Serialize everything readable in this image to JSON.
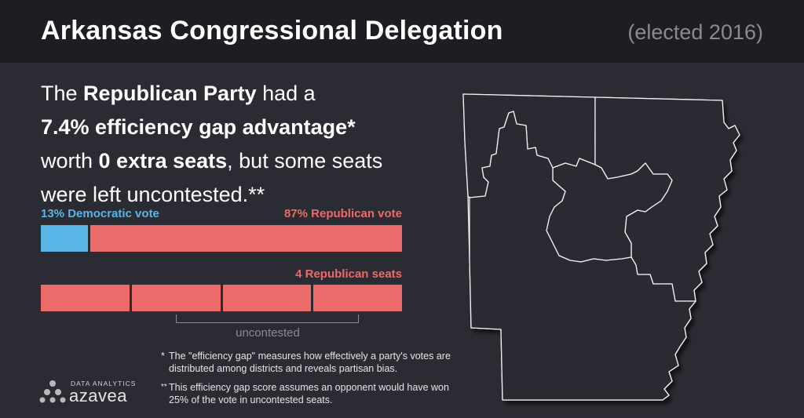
{
  "header": {
    "title": "Arkansas Congressional Delegation",
    "subtitle": "(elected 2016)"
  },
  "headline": {
    "line1_pre": "The ",
    "party": "Republican Party",
    "line1_post": " had a",
    "gap": "7.4% efficiency gap advantage*",
    "line3_pre": "worth ",
    "seats": "0 extra seats",
    "line3_post": ", but some seats",
    "line4": "were left uncontested.**"
  },
  "vote_bar": {
    "dem_label": "13% Democratic vote",
    "rep_label": "87% Republican vote",
    "dem_share": 13,
    "rep_share": 87,
    "dem_color": "#5ab4e6",
    "rep_color": "#ec6a6a"
  },
  "seats": {
    "label": "4 Republican seats",
    "count": 4,
    "uncontested_label": "uncontested"
  },
  "footnotes": [
    {
      "mark": "*",
      "text": "The \"efficiency gap\" measures how effectively a party's votes are distributed among districts and reveals partisan bias."
    },
    {
      "mark": "**",
      "text": "This efficiency gap score assumes an opponent would have won 25% of the vote in uncontested seats."
    }
  ],
  "logo": {
    "small": "DATA ANALYTICS",
    "name": "azavea"
  },
  "map": {
    "icon": "arkansas-districts-map"
  }
}
